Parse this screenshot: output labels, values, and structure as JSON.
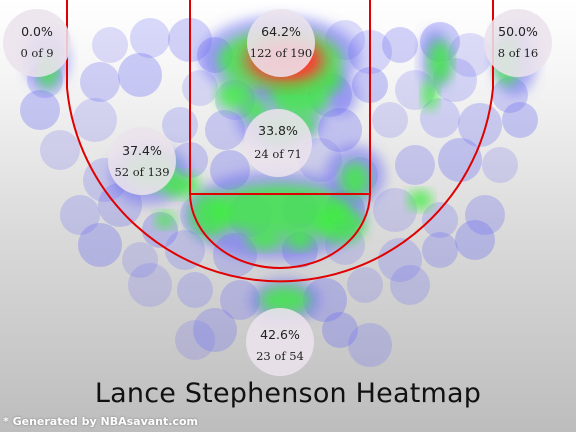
{
  "title": "Lance Stephenson Heatmap",
  "credit": "* Generated by NBAsavant.com",
  "colors": {
    "court_line": "#e00000",
    "zone_circle": "#ebe2ec",
    "heat_low": "#6f6ff2",
    "heat_mid": "#40ee40",
    "heat_high": "#ff3b30"
  },
  "chart_data": {
    "type": "heatmap",
    "title": "Lance Stephenson Heatmap",
    "zones": [
      {
        "id": "left-corner-3",
        "pct": "0.0%",
        "made": 0,
        "attempts": 9,
        "label": "0 of 9"
      },
      {
        "id": "restricted-area",
        "pct": "64.2%",
        "made": 122,
        "attempts": 190,
        "label": "122 of 190"
      },
      {
        "id": "right-corner-3",
        "pct": "50.0%",
        "made": 8,
        "attempts": 16,
        "label": "8 of 16"
      },
      {
        "id": "left-mid-range",
        "pct": "37.4%",
        "made": 52,
        "attempts": 139,
        "label": "52 of 139"
      },
      {
        "id": "paint",
        "pct": "33.8%",
        "made": 24,
        "attempts": 71,
        "label": "24 of 71"
      },
      {
        "id": "above-break-3",
        "pct": "42.6%",
        "made": 23,
        "attempts": 54,
        "label": "23 of 54"
      }
    ]
  }
}
